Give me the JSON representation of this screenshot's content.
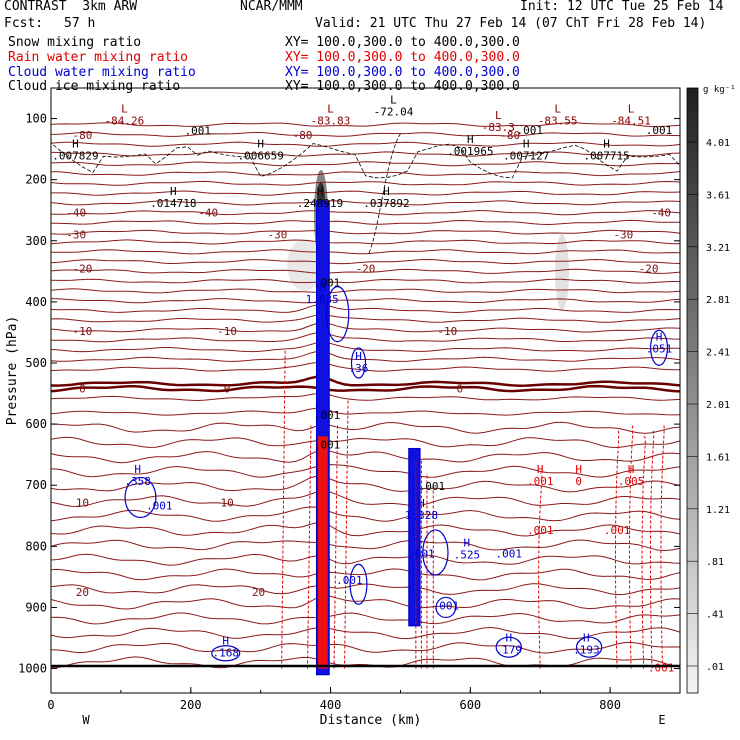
{
  "header": {
    "model": "CONTRAST  3km ARW",
    "source": "NCAR/MMM",
    "init": "Init: 12 UTC Tue 25 Feb 14",
    "fcst_label": "Fcst:",
    "fcst_value": "57 h",
    "valid": "Valid: 21 UTC Thu 27 Feb 14 (07 ChT Fri 28 Feb 14)"
  },
  "fields": [
    {
      "name": "Snow mixing ratio",
      "xy": "XY= 100.0,300.0 to 400.0,300.0",
      "color": "#000000"
    },
    {
      "name": "Rain water mixing ratio",
      "xy": "XY= 100.0,300.0 to 400.0,300.0",
      "color": "#e00000"
    },
    {
      "name": "Cloud water mixing ratio",
      "xy": "XY= 100.0,300.0 to 400.0,300.0",
      "color": "#0000d0"
    },
    {
      "name": "Cloud ice mixing ratio",
      "xy": "XY= 100.0,300.0 to 400.0,300.0",
      "color": "#000000"
    }
  ],
  "chart_data": {
    "type": "contour-cross-section",
    "xlabel": "Distance (km)",
    "ylabel": "Pressure (hPa)",
    "xlim": [
      0,
      900
    ],
    "ylim": [
      1040,
      50
    ],
    "xticks": [
      0,
      200,
      400,
      600,
      800
    ],
    "yticks": [
      100,
      200,
      300,
      400,
      500,
      600,
      700,
      800,
      900,
      1000
    ],
    "x_end_labels": {
      "left": "W",
      "right": "E"
    },
    "colorbar": {
      "unit": "g kg⁻¹",
      "labels": [
        "4.01",
        "3.61",
        "3.21",
        "2.81",
        "2.41",
        "2.01",
        "1.61",
        "1.21",
        ".81",
        ".41",
        ".01"
      ]
    },
    "temperature_isotherms": [
      {
        "label": "-80",
        "p": 127
      },
      {
        "label": "-40",
        "p": 254
      },
      {
        "label": "-30",
        "p": 290
      },
      {
        "label": "-20",
        "p": 345
      },
      {
        "label": "-10",
        "p": 448
      },
      {
        "label": "0",
        "p": 542
      },
      {
        "label": "10",
        "p": 728
      },
      {
        "label": "20",
        "p": 875
      }
    ],
    "extrema_labels": [
      {
        "type": "L",
        "value": "-84.26",
        "x": 105,
        "p": 110,
        "color": "#8b0000"
      },
      {
        "type": "L",
        "value": "-83.83",
        "x": 400,
        "p": 110,
        "color": "#8b0000"
      },
      {
        "type": "L",
        "value": "-72.04",
        "x": 490,
        "p": 95,
        "color": "#000000"
      },
      {
        "type": "L",
        "value": "-83.3",
        "x": 640,
        "p": 120,
        "color": "#8b0000"
      },
      {
        "type": "L",
        "value": "-83.55",
        "x": 725,
        "p": 110,
        "color": "#8b0000"
      },
      {
        "type": "L",
        "value": "-84.51",
        "x": 830,
        "p": 110,
        "color": "#8b0000"
      },
      {
        "type": "H",
        "value": ".007829",
        "x": 35,
        "p": 167,
        "color": "#000000"
      },
      {
        "type": "H",
        "value": ".006659",
        "x": 300,
        "p": 167,
        "color": "#000000"
      },
      {
        "type": "H",
        "value": ".001965",
        "x": 600,
        "p": 160,
        "color": "#000000"
      },
      {
        "type": "H",
        "value": ".007127",
        "x": 680,
        "p": 167,
        "color": "#000000"
      },
      {
        "type": "H",
        "value": ".007715",
        "x": 795,
        "p": 167,
        "color": "#000000"
      },
      {
        "type": "H",
        "value": ".014718",
        "x": 175,
        "p": 245,
        "color": "#000000"
      },
      {
        "type": "H",
        "value": ".248919",
        "x": 385,
        "p": 245,
        "color": "#000000"
      },
      {
        "type": "H",
        "value": ".037892",
        "x": 480,
        "p": 245,
        "color": "#000000"
      },
      {
        "type": "H",
        "value": "1.835",
        "x": 388,
        "p": 402,
        "color": "#0000d0"
      },
      {
        "type": "H",
        "value": ".051",
        "x": 870,
        "p": 483,
        "color": "#0000d0"
      },
      {
        "type": "H",
        "value": ".36",
        "x": 440,
        "p": 515,
        "color": "#0000d0"
      },
      {
        "type": "H",
        "value": ".358",
        "x": 124,
        "p": 700,
        "color": "#0000d0"
      },
      {
        "type": "H",
        "value": "1.328",
        "x": 530,
        "p": 755,
        "color": "#0000d0"
      },
      {
        "type": "H",
        "value": ".525",
        "x": 595,
        "p": 820,
        "color": "#0000d0"
      },
      {
        "type": "H",
        "value": ".179",
        "x": 655,
        "p": 975,
        "color": "#0000d0"
      },
      {
        "type": "H",
        "value": ".193",
        "x": 766,
        "p": 975,
        "color": "#0000d0"
      },
      {
        "type": "H",
        "value": ".168",
        "x": 250,
        "p": 980,
        "color": "#0000d0"
      },
      {
        "type": "H",
        "value": ".001",
        "x": 700,
        "p": 700,
        "color": "#e00000"
      },
      {
        "type": "H",
        "value": "0",
        "x": 755,
        "p": 700,
        "color": "#e00000"
      },
      {
        "type": "H",
        "value": ".005",
        "x": 830,
        "p": 700,
        "color": "#e00000"
      }
    ],
    "contour_value_labels": [
      {
        "value": ".001",
        "x": 210,
        "p": 126,
        "color": "#000000"
      },
      {
        "value": ".001",
        "x": 685,
        "p": 125,
        "color": "#000000"
      },
      {
        "value": ".001",
        "x": 870,
        "p": 125,
        "color": "#000000"
      },
      {
        "value": ".001",
        "x": 395,
        "p": 375,
        "color": "#000000"
      },
      {
        "value": ".001",
        "x": 155,
        "p": 740,
        "color": "#0000d0"
      },
      {
        "value": ".001",
        "x": 395,
        "p": 592,
        "color": "#000000"
      },
      {
        "value": ".001",
        "x": 395,
        "p": 640,
        "color": "#000000"
      },
      {
        "value": ".001",
        "x": 545,
        "p": 708,
        "color": "#000000"
      },
      {
        "value": ".001",
        "x": 530,
        "p": 818,
        "color": "#0000d0"
      },
      {
        "value": ".001",
        "x": 655,
        "p": 818,
        "color": "#0000d0"
      },
      {
        "value": ".001",
        "x": 427,
        "p": 862,
        "color": "#0000d0"
      },
      {
        "value": ".001",
        "x": 565,
        "p": 903,
        "color": "#0000d0"
      },
      {
        "value": ".001",
        "x": 700,
        "p": 780,
        "color": "#e00000"
      },
      {
        "value": ".001",
        "x": 810,
        "p": 780,
        "color": "#e00000"
      },
      {
        "value": ".001",
        "x": 873,
        "p": 1005,
        "color": "#e00000"
      }
    ],
    "notes": "Condensate shaded grey (cloud ice) along tower near x=385 km; blue cloud water column 370-410 km; red dashed rain columns near 385 and 520-540 km."
  }
}
